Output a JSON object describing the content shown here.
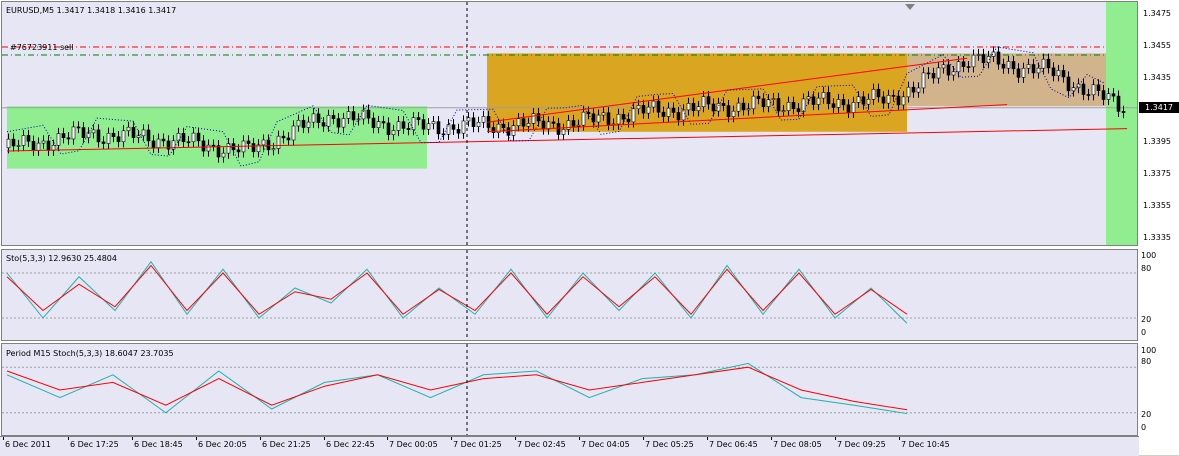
{
  "header": {
    "symbol_line": "EURUSD,M5  1.3417 1.3418 1.3416 1.3417",
    "order_label": "#76723911 sell"
  },
  "price_axis": {
    "ticks": [
      "1.3475",
      "1.3455",
      "1.3435",
      "1.3417",
      "1.3395",
      "1.3375",
      "1.3355",
      "1.3335"
    ],
    "current_price": "1.3417"
  },
  "stoch1": {
    "label": "Sto(5,3,3) 12.9630 25.4804",
    "ticks": [
      "100",
      "80",
      "20",
      "0"
    ]
  },
  "stoch2": {
    "label": "Period M15 Stoch(5,3,3) 18.6047 23.7035",
    "ticks": [
      "100",
      "80",
      "20",
      "0"
    ]
  },
  "time_axis": [
    "6 Dec 2011",
    "6 Dec 17:25",
    "6 Dec 18:45",
    "6 Dec 20:05",
    "6 Dec 21:25",
    "6 Dec 22:45",
    "7 Dec 00:05",
    "7 Dec 01:25",
    "7 Dec 02:45",
    "7 Dec 04:05",
    "7 Dec 05:25",
    "7 Dec 06:45",
    "7 Dec 08:05",
    "7 Dec 09:25",
    "7 Dec 10:45"
  ],
  "colors": {
    "green_zone": "#90ee90",
    "orange_zone": "#daa520",
    "tan_zone": "#d2b48c",
    "trend": "#ff0000",
    "stoch_main": "#20b2aa",
    "stoch_signal": "#ff0000"
  },
  "chart_data": [
    {
      "type": "candlestick",
      "title": "EURUSD,M5",
      "ylim": [
        1.333,
        1.348
      ],
      "x": [
        "6 Dec 16:05",
        "6 Dec 17:25",
        "6 Dec 18:45",
        "6 Dec 20:05",
        "6 Dec 21:25",
        "6 Dec 22:45",
        "7 Dec 00:05",
        "7 Dec 01:25",
        "7 Dec 02:45",
        "7 Dec 04:05",
        "7 Dec 05:25",
        "7 Dec 06:45",
        "7 Dec 08:05",
        "7 Dec 09:25",
        "7 Dec 10:40"
      ],
      "close": [
        1.3392,
        1.3401,
        1.3397,
        1.339,
        1.3412,
        1.3405,
        1.3406,
        1.3407,
        1.3415,
        1.3418,
        1.342,
        1.3422,
        1.3448,
        1.344,
        1.3417
      ],
      "current_price": 1.3417,
      "order_lines": [
        1.3455,
        1.345
      ],
      "trendlines": [
        {
          "from": [
            "6 Dec 16:05",
            1.339
          ],
          "to": [
            "7 Dec 10:45",
            1.3404
          ]
        },
        {
          "from": [
            "7 Dec 00:05",
            1.3408
          ],
          "to": [
            "7 Dec 08:05",
            1.3448
          ]
        },
        {
          "from": [
            "7 Dec 00:05",
            1.3402
          ],
          "to": [
            "7 Dec 08:45",
            1.3419
          ]
        }
      ],
      "zones": [
        {
          "name": "green",
          "from": "6 Dec 16:05",
          "to": "6 Dec 23:05",
          "y": [
            1.3379,
            1.3418
          ]
        },
        {
          "name": "orange",
          "from": "7 Dec 00:05",
          "to": "7 Dec 07:05",
          "y": [
            1.3402,
            1.3451
          ]
        },
        {
          "name": "tan",
          "from": "7 Dec 07:05",
          "to": "7 Dec 11:00",
          "y": [
            1.3418,
            1.3451
          ]
        }
      ]
    },
    {
      "type": "line",
      "title": "Sto(5,3,3)",
      "ylim": [
        0,
        100
      ],
      "levels": [
        20,
        80
      ],
      "series": [
        {
          "name": "main",
          "values": [
            80,
            20,
            75,
            30,
            95,
            25,
            85,
            20,
            60,
            40,
            85,
            20,
            60,
            25,
            85,
            20,
            80,
            30,
            80,
            20,
            90,
            25,
            85,
            20,
            60,
            13
          ]
        },
        {
          "name": "signal",
          "values": [
            75,
            30,
            65,
            35,
            90,
            30,
            80,
            25,
            55,
            45,
            80,
            25,
            58,
            30,
            80,
            25,
            75,
            35,
            75,
            25,
            85,
            30,
            80,
            25,
            58,
            25
          ]
        }
      ]
    },
    {
      "type": "line",
      "title": "Period M15 Stoch(5,3,3)",
      "ylim": [
        0,
        100
      ],
      "levels": [
        20,
        80
      ],
      "series": [
        {
          "name": "main",
          "values": [
            70,
            40,
            70,
            20,
            75,
            25,
            60,
            70,
            40,
            70,
            75,
            40,
            65,
            70,
            85,
            40,
            30,
            19
          ]
        },
        {
          "name": "signal",
          "values": [
            75,
            50,
            60,
            30,
            65,
            30,
            55,
            70,
            50,
            65,
            70,
            50,
            60,
            70,
            80,
            50,
            35,
            24
          ]
        }
      ]
    }
  ]
}
